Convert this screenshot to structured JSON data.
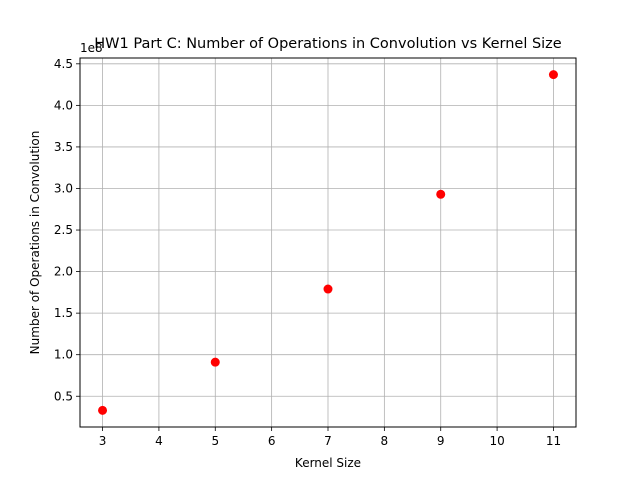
{
  "chart_data": {
    "type": "scatter",
    "title": "HW1 Part C: Number of Operations in Convolution vs Kernel Size",
    "xlabel": "Kernel Size",
    "ylabel": "Number of Operations in Convolution",
    "y_offset_label": "1e8",
    "x": [
      3,
      5,
      7,
      9,
      11
    ],
    "y": [
      0.33,
      0.91,
      1.79,
      2.93,
      4.37
    ],
    "xlim": [
      2.6,
      11.4
    ],
    "ylim": [
      0.13,
      4.57
    ],
    "x_ticks": [
      3,
      4,
      5,
      6,
      7,
      8,
      9,
      10,
      11
    ],
    "x_tick_labels": [
      "3",
      "4",
      "5",
      "6",
      "7",
      "8",
      "9",
      "10",
      "11"
    ],
    "y_ticks": [
      0.5,
      1.0,
      1.5,
      2.0,
      2.5,
      3.0,
      3.5,
      4.0,
      4.5
    ],
    "y_tick_labels": [
      "0.5",
      "1.0",
      "1.5",
      "2.0",
      "2.5",
      "3.0",
      "3.5",
      "4.0",
      "4.5"
    ],
    "grid": true,
    "marker_color": "#ff0000",
    "grid_color": "#b0b0b0"
  }
}
